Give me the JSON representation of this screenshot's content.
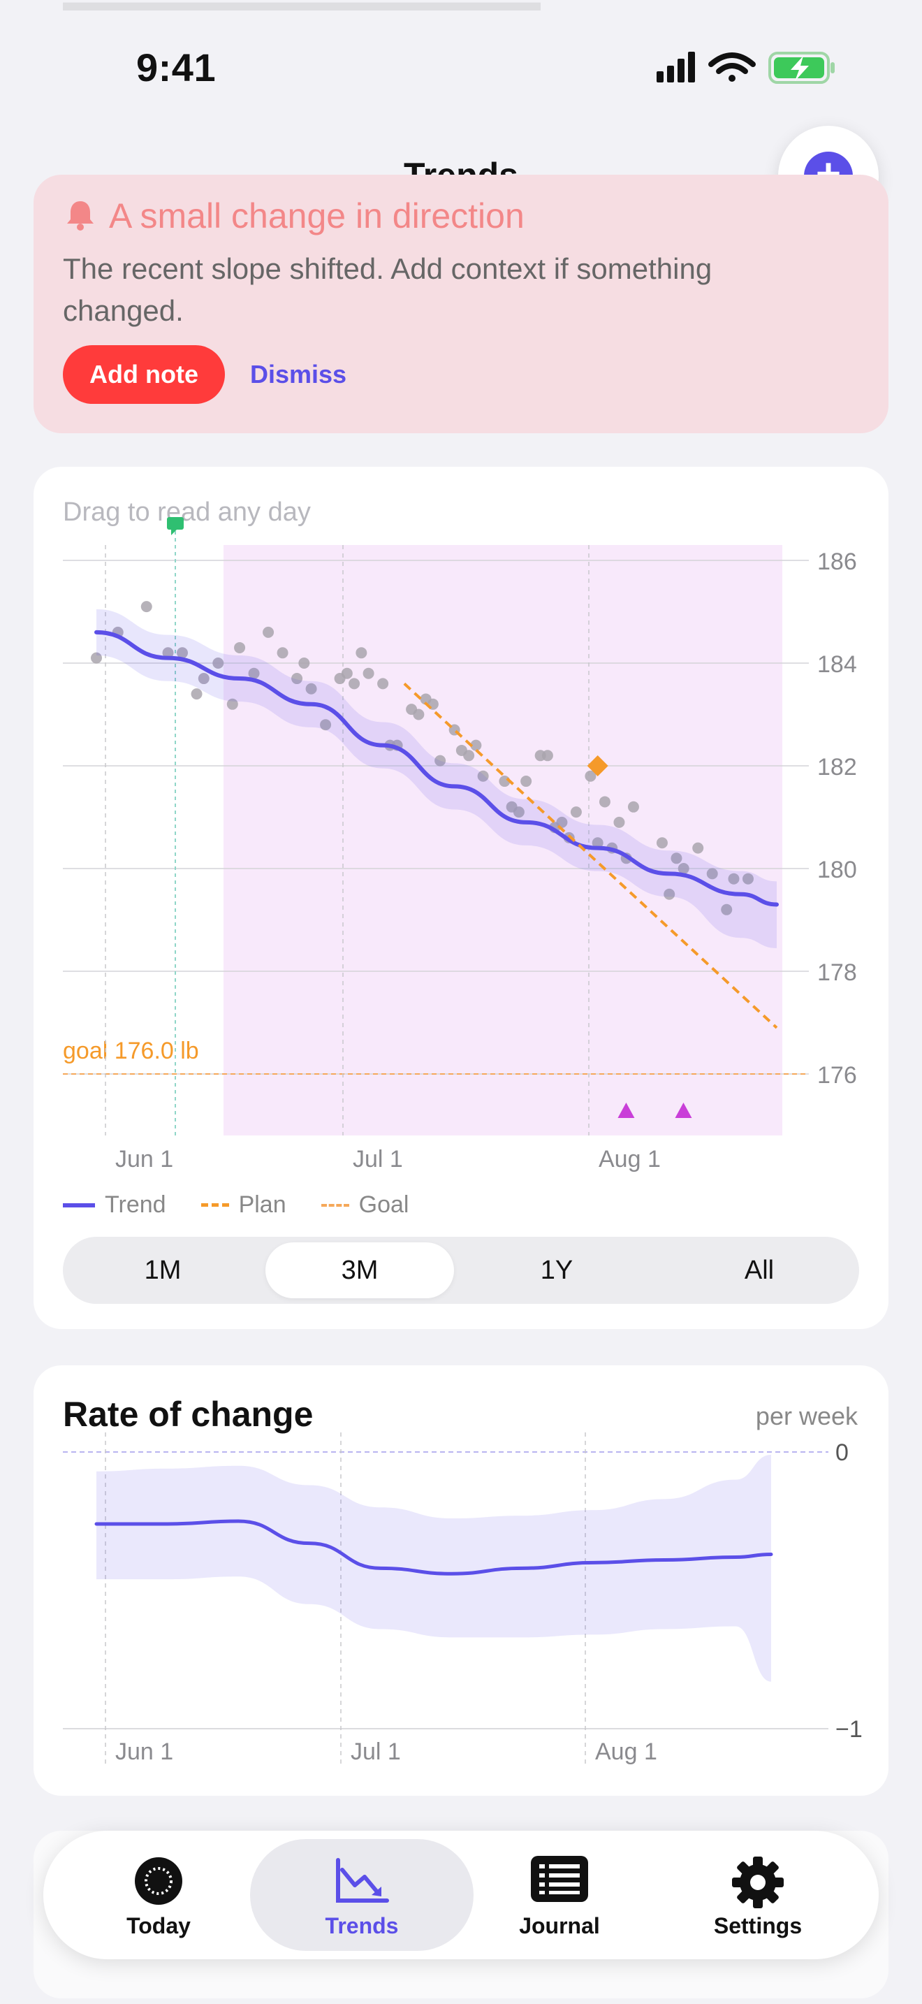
{
  "status": {
    "time": "9:41"
  },
  "header": {
    "title": "Trends",
    "add_label": "+"
  },
  "alert": {
    "title": "A small change in direction",
    "body": "The recent slope shifted. Add context if something changed.",
    "primary": "Add note",
    "secondary": "Dismiss",
    "color": "#ff3b3b"
  },
  "chart_data": [
    {
      "type": "line",
      "hint": "Drag to read any day",
      "y_ticks": [
        186,
        184,
        182,
        180,
        178,
        176
      ],
      "x_ticks": [
        "Jun 1",
        "Jul 1",
        "Aug 1"
      ],
      "goal_label": "goal 176.0 lb",
      "goal_value": 176.0,
      "legend": [
        "Trend",
        "Plan",
        "Goal"
      ],
      "colors": {
        "trend": "#5b4fe8",
        "plan": "#f59a2a",
        "goal": "#f5a85a",
        "points": "#a9a5ad",
        "highlight": "#f8e9fb"
      },
      "series": [
        {
          "name": "Trend",
          "x": [
            0,
            10,
            20,
            30,
            40,
            50,
            60,
            70,
            80,
            90,
            95
          ],
          "y": [
            184.6,
            184.1,
            183.7,
            183.2,
            182.4,
            181.6,
            180.9,
            180.4,
            179.9,
            179.5,
            179.3
          ]
        },
        {
          "name": "Plan",
          "x": [
            43,
            95
          ],
          "y": [
            183.6,
            176.9
          ]
        }
      ],
      "points": [
        [
          0,
          184.1
        ],
        [
          3,
          184.6
        ],
        [
          7,
          185.1
        ],
        [
          10,
          184.2
        ],
        [
          12,
          184.2
        ],
        [
          14,
          183.4
        ],
        [
          15,
          183.7
        ],
        [
          17,
          184.0
        ],
        [
          19,
          183.2
        ],
        [
          20,
          184.3
        ],
        [
          22,
          183.8
        ],
        [
          24,
          184.6
        ],
        [
          26,
          184.2
        ],
        [
          28,
          183.7
        ],
        [
          29,
          184.0
        ],
        [
          30,
          183.5
        ],
        [
          32,
          182.8
        ],
        [
          34,
          183.7
        ],
        [
          35,
          183.8
        ],
        [
          36,
          183.6
        ],
        [
          37,
          184.2
        ],
        [
          38,
          183.8
        ],
        [
          40,
          183.6
        ],
        [
          41,
          182.4
        ],
        [
          42,
          182.4
        ],
        [
          44,
          183.1
        ],
        [
          45,
          183.0
        ],
        [
          46,
          183.3
        ],
        [
          47,
          183.2
        ],
        [
          48,
          182.1
        ],
        [
          50,
          182.7
        ],
        [
          51,
          182.3
        ],
        [
          52,
          182.2
        ],
        [
          53,
          182.4
        ],
        [
          54,
          181.8
        ],
        [
          57,
          181.7
        ],
        [
          58,
          181.2
        ],
        [
          59,
          181.1
        ],
        [
          60,
          181.7
        ],
        [
          62,
          182.2
        ],
        [
          63,
          182.2
        ],
        [
          64,
          180.8
        ],
        [
          65,
          180.9
        ],
        [
          66,
          180.6
        ],
        [
          67,
          181.1
        ],
        [
          69,
          181.8
        ],
        [
          70,
          180.5
        ],
        [
          71,
          181.3
        ],
        [
          72,
          180.4
        ],
        [
          73,
          180.9
        ],
        [
          74,
          180.2
        ],
        [
          75,
          181.2
        ],
        [
          79,
          180.5
        ],
        [
          80,
          179.5
        ],
        [
          81,
          180.2
        ],
        [
          82,
          180.0
        ],
        [
          84,
          180.4
        ],
        [
          86,
          179.9
        ],
        [
          88,
          179.2
        ],
        [
          89,
          179.8
        ],
        [
          91,
          179.8
        ]
      ],
      "markers": {
        "diamond": [
          70,
          182.0
        ],
        "triangles_x": [
          73,
          81
        ]
      }
    },
    {
      "type": "area",
      "title": "Rate of change",
      "unit": "per week",
      "y_ticks": [
        0,
        -1
      ],
      "x_ticks": [
        "Jun 1",
        "Jul 1",
        "Aug 1"
      ],
      "series": [
        {
          "name": "rate",
          "x": [
            0,
            10,
            20,
            30,
            40,
            50,
            60,
            70,
            80,
            90,
            95
          ],
          "y": [
            -0.26,
            -0.26,
            -0.25,
            -0.33,
            -0.42,
            -0.44,
            -0.42,
            -0.4,
            -0.39,
            -0.38,
            -0.37
          ]
        }
      ],
      "band_low": [
        -0.46,
        -0.46,
        -0.45,
        -0.55,
        -0.64,
        -0.67,
        -0.67,
        -0.66,
        -0.64,
        -0.63,
        -0.83
      ],
      "band_high": [
        -0.07,
        -0.06,
        -0.05,
        -0.12,
        -0.2,
        -0.24,
        -0.23,
        -0.21,
        -0.17,
        -0.1,
        -0.01
      ]
    }
  ],
  "range": {
    "options": [
      "1M",
      "3M",
      "1Y",
      "All"
    ],
    "selected": "3M"
  },
  "tabs": [
    {
      "label": "Today",
      "icon": "today-ring-icon"
    },
    {
      "label": "Trends",
      "icon": "trends-chart-icon",
      "active": true
    },
    {
      "label": "Journal",
      "icon": "journal-list-icon"
    },
    {
      "label": "Settings",
      "icon": "gear-icon"
    }
  ]
}
